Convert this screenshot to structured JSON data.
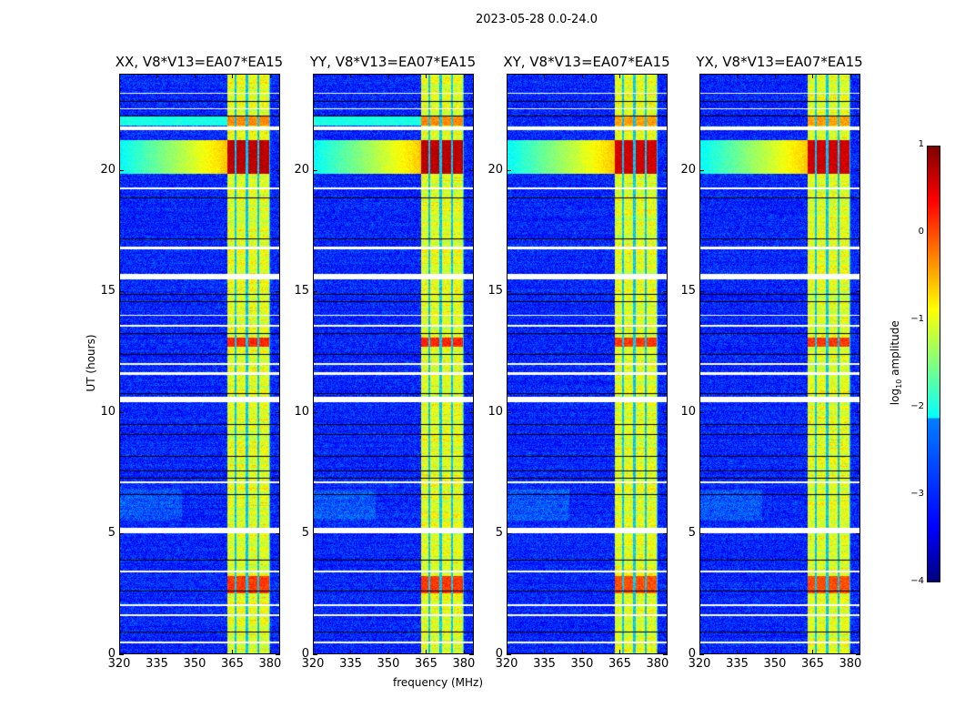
{
  "suptitle": "2023-05-28 0.0-24.0",
  "chart_data": {
    "type": "heatmap",
    "title": "2023-05-28 0.0-24.0",
    "xlabel": "frequency (MHz)",
    "ylabel": "UT (hours)",
    "xlim": [
      320,
      384
    ],
    "ylim": [
      0,
      24
    ],
    "xticks": [
      "320",
      "335",
      "350",
      "365",
      "380"
    ],
    "xtick_values": [
      320,
      335,
      350,
      365,
      380
    ],
    "yticks": [
      "0",
      "5",
      "10",
      "15",
      "20"
    ],
    "ytick_values": [
      0,
      5,
      10,
      15,
      20
    ],
    "panels": [
      {
        "title": "XX, V8*V13=EA07*EA15",
        "pol": "XX"
      },
      {
        "title": "YY, V8*V13=EA07*EA15",
        "pol": "YY"
      },
      {
        "title": "XY, V8*V13=EA07*EA15",
        "pol": "XY"
      },
      {
        "title": "YX, V8*V13=EA07*EA15",
        "pol": "YX"
      }
    ],
    "colorbar": {
      "label": "log10 amplitude",
      "label_main": "log",
      "label_sub": "10",
      "label_rest": " amplitude",
      "range": [
        -4,
        1
      ],
      "ticks": [
        "1",
        "0",
        "−1",
        "−2",
        "−3",
        "−4"
      ],
      "tick_values": [
        1,
        0,
        -1,
        -2,
        -3,
        -4
      ],
      "colormap": "jet"
    },
    "background_level": -3.2,
    "rfi_band_mhz": [
      363,
      380.5
    ],
    "rfi_band_level": -1.0,
    "subband_edges_mhz": [
      366.5,
      371,
      375.5,
      380.5
    ],
    "strong_rfi_hours": [
      [
        19.9,
        21.3,
        0.7
      ],
      [
        12.7,
        13.1,
        0.2
      ],
      [
        2.5,
        3.2,
        0.1
      ],
      [
        21.9,
        22.3,
        -0.3
      ]
    ],
    "flagged_hours": [
      [
        0.4,
        0.48
      ],
      [
        1.55,
        1.62
      ],
      [
        1.95,
        2.02
      ],
      [
        3.35,
        3.42
      ],
      [
        5.0,
        5.2
      ],
      [
        7.05,
        7.12
      ],
      [
        10.4,
        10.65
      ],
      [
        11.55,
        11.65
      ],
      [
        11.95,
        12.05
      ],
      [
        13.55,
        13.62
      ],
      [
        14.0,
        14.05
      ],
      [
        15.5,
        15.75
      ],
      [
        16.75,
        16.85
      ],
      [
        19.25,
        19.32
      ],
      [
        21.7,
        21.85
      ],
      [
        22.55,
        22.62
      ],
      [
        23.2,
        23.25
      ]
    ],
    "black_hours": [
      0.9,
      2.6,
      3.9,
      6.6,
      7.3,
      7.6,
      8.2,
      9.1,
      9.5,
      10.8,
      12.4,
      13.3,
      14.6,
      14.9,
      17.2,
      18.9,
      22.3,
      22.9
    ]
  }
}
